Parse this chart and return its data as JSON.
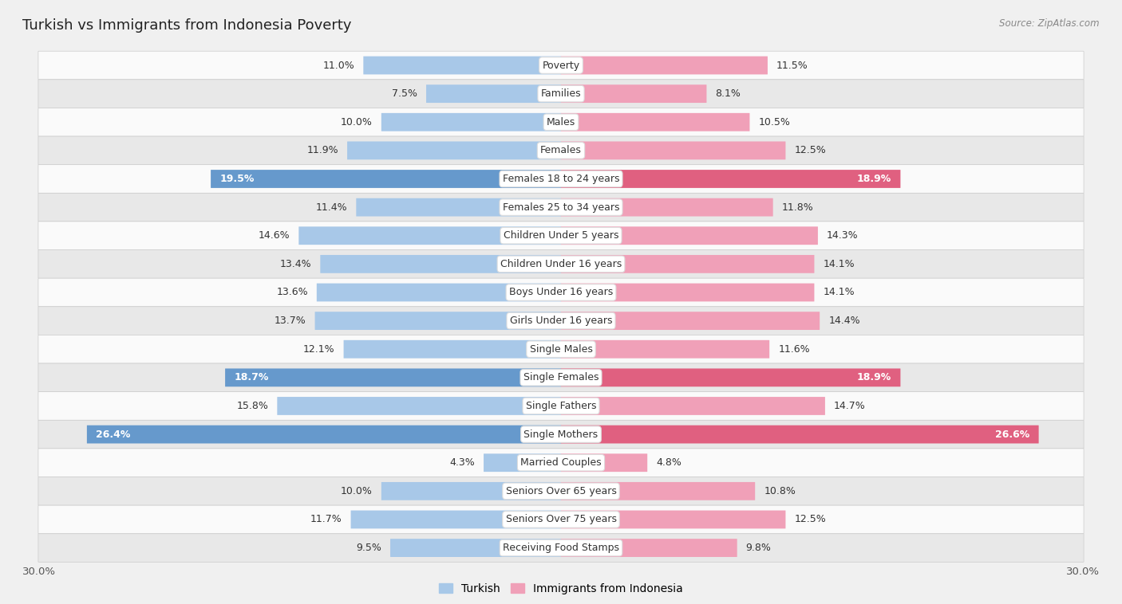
{
  "title": "Turkish vs Immigrants from Indonesia Poverty",
  "source": "Source: ZipAtlas.com",
  "categories": [
    "Poverty",
    "Families",
    "Males",
    "Females",
    "Females 18 to 24 years",
    "Females 25 to 34 years",
    "Children Under 5 years",
    "Children Under 16 years",
    "Boys Under 16 years",
    "Girls Under 16 years",
    "Single Males",
    "Single Females",
    "Single Fathers",
    "Single Mothers",
    "Married Couples",
    "Seniors Over 65 years",
    "Seniors Over 75 years",
    "Receiving Food Stamps"
  ],
  "turkish_values": [
    11.0,
    7.5,
    10.0,
    11.9,
    19.5,
    11.4,
    14.6,
    13.4,
    13.6,
    13.7,
    12.1,
    18.7,
    15.8,
    26.4,
    4.3,
    10.0,
    11.7,
    9.5
  ],
  "indonesia_values": [
    11.5,
    8.1,
    10.5,
    12.5,
    18.9,
    11.8,
    14.3,
    14.1,
    14.1,
    14.4,
    11.6,
    18.9,
    14.7,
    26.6,
    4.8,
    10.8,
    12.5,
    9.8
  ],
  "turkish_color": "#a8c8e8",
  "indonesia_color": "#f0a0b8",
  "turkish_highlight_color": "#6699cc",
  "indonesia_highlight_color": "#e06080",
  "highlight_threshold": 18.0,
  "xlim": 30.0,
  "bar_height": 0.62,
  "background_color": "#f0f0f0",
  "row_bg_light": "#fafafa",
  "row_bg_dark": "#e8e8e8",
  "legend_turkish": "Turkish",
  "legend_indonesia": "Immigrants from Indonesia",
  "label_fontsize": 9.0,
  "category_fontsize": 9.0,
  "title_fontsize": 13.0
}
